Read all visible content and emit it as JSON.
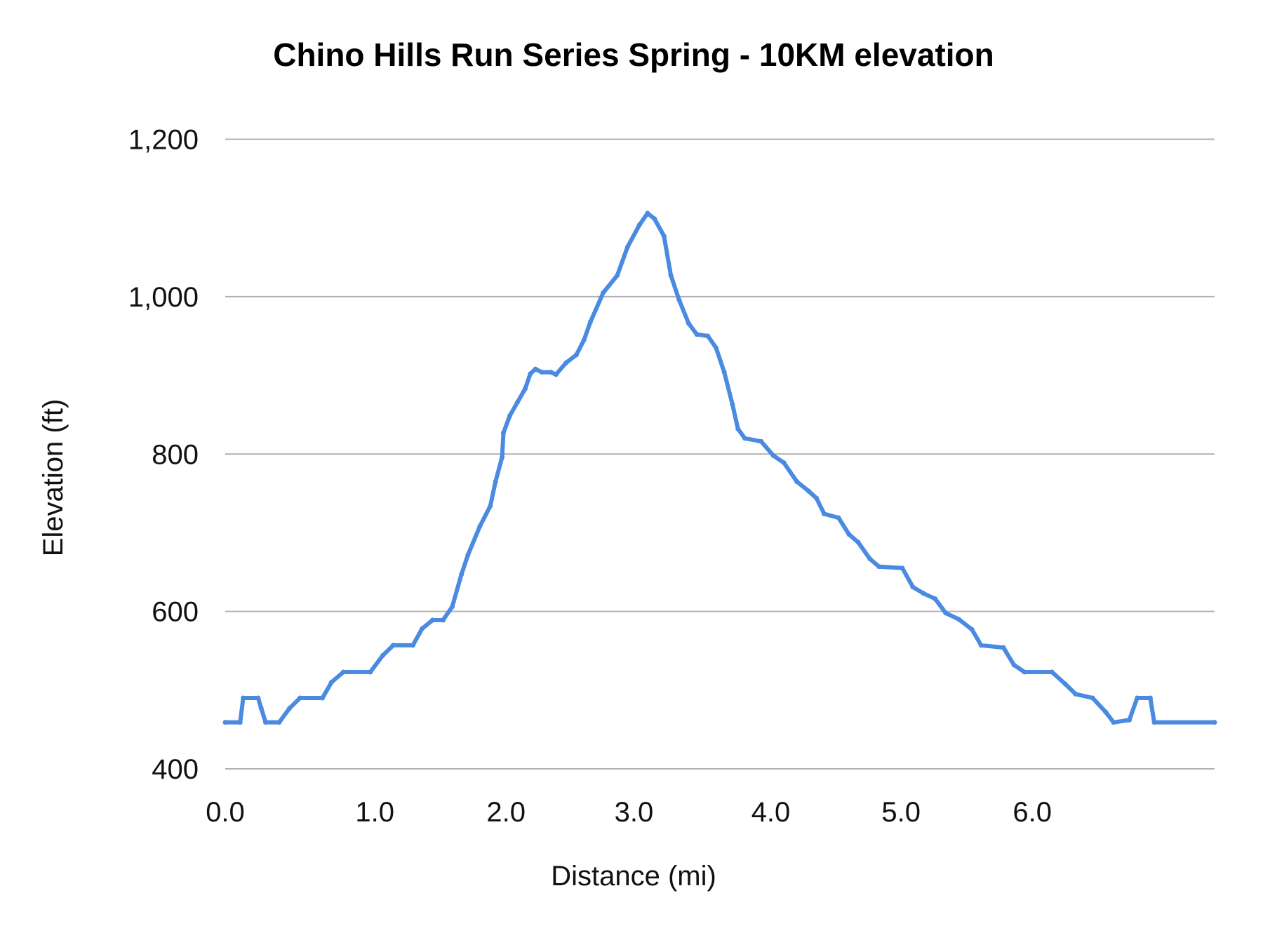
{
  "chart_data": {
    "type": "line",
    "title": "Chino Hills Run Series Spring - 10KM elevation",
    "xlabel": "Distance (mi)",
    "ylabel": "Elevation (ft)",
    "ylim": [
      400,
      1200
    ],
    "yticks": [
      400,
      600,
      800,
      1000,
      1200
    ],
    "ytick_labels": [
      "400",
      "600",
      "800",
      "1,000",
      "1,200"
    ],
    "xticks": [
      0,
      1,
      2,
      3,
      4,
      5,
      6
    ],
    "xtick_labels": [
      "0.0",
      "1.0",
      "2.0",
      "3.0",
      "4.0",
      "5.0",
      "6.0"
    ],
    "grid": true,
    "line_color": "#4a8ae0",
    "grid_color": "#b0b0b0",
    "series": [
      {
        "x": [
          0,
          0.1,
          0.12,
          0.22,
          0.24,
          0.27,
          0.36,
          0.43,
          0.5,
          0.65,
          0.71,
          0.79,
          0.97,
          1.06,
          1.14,
          1.29,
          1.36,
          1.44,
          1.52,
          1.59,
          1.66,
          1.71,
          1.8,
          1.88,
          1.92,
          1.97,
          1.98,
          2.03,
          2.09,
          2.15,
          2.19,
          2.23,
          2.28,
          2.35,
          2.39,
          2.47,
          2.55,
          2.61,
          2.66,
          2.76,
          2.87,
          2.95,
          3.04,
          3.1,
          3.15,
          3.22,
          3.27,
          3.33,
          3.4,
          3.46,
          3.54,
          3.6,
          3.66,
          3.72,
          3.76,
          3.81,
          3.93,
          4.02,
          4.1,
          4.2,
          4.29,
          4.35,
          4.41,
          4.52,
          4.6,
          4.67,
          4.76,
          4.83,
          5.01,
          5.09,
          5.17,
          5.26,
          5.34,
          5.44,
          5.54,
          5.61,
          5.78,
          5.86,
          5.94,
          6.15,
          6.25,
          6.33,
          6.46,
          6.56,
          6.62,
          6.74,
          6.8,
          6.9,
          6.93,
          7.39
        ],
        "y": [
          459,
          459,
          490,
          490,
          477,
          459,
          459,
          477,
          490,
          490,
          510,
          523,
          523,
          544,
          557,
          557,
          578,
          589,
          589,
          606,
          647,
          672,
          708,
          734,
          765,
          796,
          827,
          849,
          866,
          883,
          902,
          908,
          904,
          904,
          901,
          916,
          926,
          945,
          968,
          1005,
          1027,
          1063,
          1091,
          1106,
          1099,
          1077,
          1027,
          996,
          966,
          952,
          950,
          935,
          904,
          863,
          832,
          820,
          816,
          798,
          789,
          765,
          753,
          744,
          724,
          719,
          698,
          688,
          667,
          657,
          655,
          631,
          623,
          616,
          598,
          590,
          577,
          557,
          554,
          532,
          523,
          523,
          508,
          495,
          490,
          472,
          459,
          462,
          490,
          490,
          459,
          459
        ]
      }
    ]
  }
}
